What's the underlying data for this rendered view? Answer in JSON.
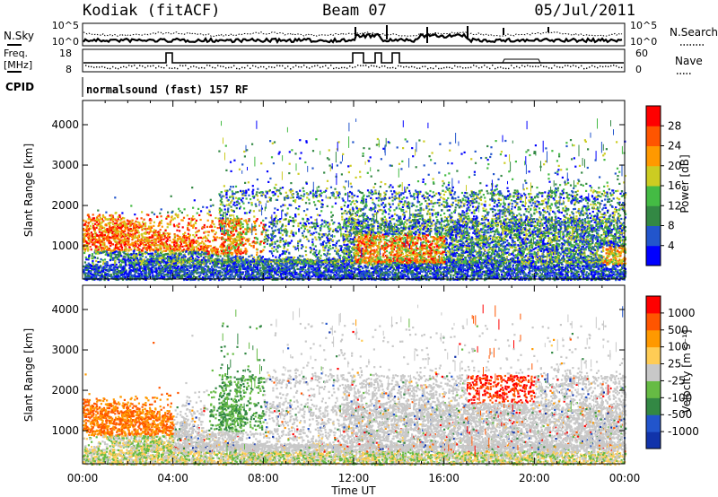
{
  "header": {
    "station": "Kodiak (fitACF)",
    "beam": "Beam 07",
    "date": "05/Jul/2011"
  },
  "status": {
    "nsky_label": "N.Sky",
    "nsearch_label": "N.Search",
    "freq_label_1": "Freq.",
    "freq_label_2": "[MHz]",
    "nave_label": "Nave",
    "cpid_label": "CPID",
    "cpid_value": "normalsound (fast) 157 RF",
    "noise_ticks_left": [
      "10^5",
      "10^0"
    ],
    "noise_ticks_right": [
      "10^5",
      "10^0"
    ],
    "freq_ticks": [
      "18",
      "8"
    ],
    "nave_ticks": [
      "60",
      "0"
    ]
  },
  "chart_data": [
    {
      "type": "heatmap",
      "panel": "power",
      "ylabel": "Slant Range [km]",
      "ylim": [
        180,
        4600
      ],
      "yticks": [
        "1000",
        "2000",
        "3000",
        "4000"
      ],
      "xlabel": "Time UT",
      "xlim": [
        "00:00",
        "24:00"
      ],
      "xticks": [
        "00:00",
        "04:00",
        "08:00",
        "12:00",
        "16:00",
        "20:00",
        "00:00"
      ],
      "colorbar_label": "Power [dB]",
      "colorbar_ticks": [
        "4",
        "8",
        "12",
        "16",
        "20",
        "24",
        "28"
      ],
      "colors": [
        "#0000ff",
        "#2255cc",
        "#338844",
        "#44bb44",
        "#cccc22",
        "#ff9900",
        "#ff5500",
        "#ff0000"
      ]
    },
    {
      "type": "heatmap",
      "panel": "velocity",
      "ylabel": "Slant Range [km]",
      "ylim": [
        180,
        4600
      ],
      "yticks": [
        "1000",
        "2000",
        "3000",
        "4000"
      ],
      "xlabel": "Time UT",
      "xlim": [
        "00:00",
        "24:00"
      ],
      "xticks": [
        "00:00",
        "04:00",
        "08:00",
        "12:00",
        "16:00",
        "20:00",
        "00:00"
      ],
      "colorbar_label": "Velocity [m s⁻¹]",
      "colorbar_ticks": [
        "1000",
        "500",
        "100",
        "25",
        "-25",
        "-100",
        "-500",
        "-1000"
      ],
      "colors": [
        "#1133aa",
        "#2255cc",
        "#338844",
        "#66bb44",
        "#c8c8c8",
        "#ffcc55",
        "#ff9900",
        "#ff5500",
        "#ff0000"
      ]
    }
  ],
  "footer": {
    "xlabel": "Time UT"
  }
}
